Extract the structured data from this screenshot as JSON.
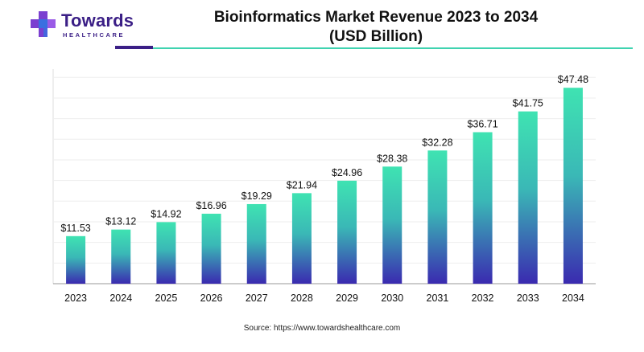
{
  "brand": {
    "name": "Towards",
    "subtitle": "HEALTHCARE",
    "colors": {
      "primary": "#3b1f86",
      "accent": "#3fd3b0",
      "logo_blue": "#3b6fe0",
      "logo_purple": "#7b3fd0"
    }
  },
  "title_line1": "Bioinformatics Market Revenue 2023 to 2034",
  "title_line2": "(USD Billion)",
  "source": "Source: https://www.towardshealthcare.com",
  "chart_data": {
    "type": "bar",
    "title": "Bioinformatics Market Revenue 2023 to 2034 (USD Billion)",
    "xlabel": "",
    "ylabel": "",
    "categories": [
      "2023",
      "2024",
      "2025",
      "2026",
      "2027",
      "2028",
      "2029",
      "2030",
      "2031",
      "2032",
      "2033",
      "2034"
    ],
    "values": [
      11.53,
      13.12,
      14.92,
      16.96,
      19.29,
      21.94,
      24.96,
      28.38,
      32.28,
      36.71,
      41.75,
      47.48
    ],
    "data_labels": [
      "$11.53",
      "$13.12",
      "$14.92",
      "$16.96",
      "$19.29",
      "$21.94",
      "$24.96",
      "$28.38",
      "$32.28",
      "$36.71",
      "$41.75",
      "$47.48"
    ],
    "ylim": [
      0,
      52
    ],
    "grid": true,
    "legend": "none",
    "bar_gradient": [
      "#3fe3b2",
      "#3a2ab0"
    ]
  }
}
